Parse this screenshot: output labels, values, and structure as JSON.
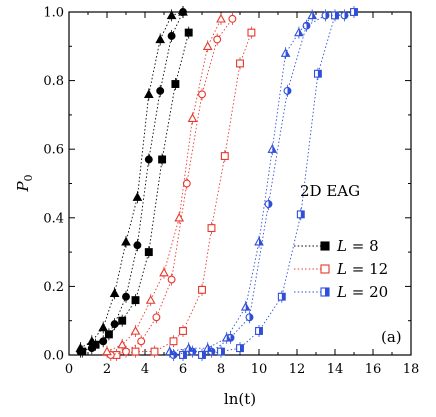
{
  "chart_data": {
    "type": "scatter",
    "xlabel": "ln(t)",
    "ylabel_main": "P",
    "ylabel_sub": "0",
    "xlim": [
      0,
      18
    ],
    "ylim": [
      0,
      1.0
    ],
    "x_ticks": [
      "0",
      "2",
      "4",
      "6",
      "8",
      "10",
      "12",
      "14",
      "16",
      "18"
    ],
    "y_ticks": [
      "0.0",
      "0.2",
      "0.4",
      "0.6",
      "0.8",
      "1.0"
    ],
    "annotation": "2D EAG",
    "panel_label": "(a)",
    "legend_position": "lower-right",
    "colors": {
      "L8": "#000000",
      "L12": "#e8372c",
      "L20": "#2f4fd8"
    },
    "series": [
      {
        "name": "L = 8",
        "legend_L": "L",
        "legend_eq": " = 8",
        "color": "#000000",
        "marker": "square-filled",
        "x": [
          0.7,
          1.4,
          2.1,
          2.8,
          3.5,
          4.2,
          4.9,
          5.6,
          6.3
        ],
        "y": [
          0.01,
          0.03,
          0.06,
          0.1,
          0.16,
          0.3,
          0.57,
          0.79,
          0.94
        ]
      },
      {
        "name": "",
        "color": "#000000",
        "marker": "circle-filled",
        "x": [
          0.6,
          1.2,
          1.8,
          2.4,
          3.0,
          3.6,
          4.2,
          4.8,
          5.4,
          6.0
        ],
        "y": [
          0.01,
          0.02,
          0.04,
          0.09,
          0.17,
          0.32,
          0.57,
          0.77,
          0.93,
          1.0
        ]
      },
      {
        "name": "",
        "color": "#000000",
        "marker": "triangle-filled",
        "x": [
          0.6,
          1.2,
          1.8,
          2.4,
          3.0,
          3.6,
          4.2,
          4.8,
          5.4,
          6.0
        ],
        "y": [
          0.02,
          0.04,
          0.08,
          0.18,
          0.33,
          0.46,
          0.76,
          0.92,
          0.99,
          1.0
        ]
      },
      {
        "name": "L = 12",
        "legend_L": "L",
        "legend_eq": " = 12",
        "color": "#e8372c",
        "marker": "square-open",
        "x": [
          2.5,
          3.5,
          4.5,
          5.5,
          6.0,
          7.0,
          7.5,
          8.2,
          9.0,
          9.6
        ],
        "y": [
          0.0,
          0.01,
          0.01,
          0.04,
          0.07,
          0.19,
          0.37,
          0.58,
          0.85,
          0.94
        ]
      },
      {
        "name": "",
        "color": "#e8372c",
        "marker": "circle-open",
        "x": [
          2.2,
          3.0,
          3.8,
          4.6,
          5.4,
          6.2,
          7.0,
          7.8,
          8.6
        ],
        "y": [
          0.0,
          0.01,
          0.04,
          0.11,
          0.22,
          0.5,
          0.76,
          0.92,
          0.98
        ]
      },
      {
        "name": "",
        "color": "#e8372c",
        "marker": "triangle-open",
        "x": [
          2.0,
          2.8,
          3.5,
          4.3,
          5.0,
          5.8,
          6.5,
          7.3,
          8.0
        ],
        "y": [
          0.01,
          0.03,
          0.07,
          0.16,
          0.24,
          0.4,
          0.69,
          0.9,
          0.98
        ]
      },
      {
        "name": "L = 20",
        "legend_L": "L",
        "legend_eq": " = 20",
        "color": "#2f4fd8",
        "marker": "square-half",
        "x": [
          6.0,
          7.0,
          8.0,
          9.0,
          10.0,
          11.2,
          12.2,
          13.1,
          14.0,
          15.0
        ],
        "y": [
          0.0,
          0.0,
          0.01,
          0.02,
          0.07,
          0.17,
          0.41,
          0.82,
          0.99,
          1.0
        ]
      },
      {
        "name": "",
        "color": "#2f4fd8",
        "marker": "circle-half",
        "x": [
          5.5,
          6.5,
          7.5,
          8.5,
          9.5,
          10.5,
          11.5,
          12.5,
          13.5,
          14.5
        ],
        "y": [
          0.0,
          0.01,
          0.01,
          0.05,
          0.11,
          0.44,
          0.77,
          0.96,
          0.99,
          0.99
        ]
      },
      {
        "name": "",
        "color": "#2f4fd8",
        "marker": "triangle-half",
        "x": [
          5.3,
          6.3,
          7.3,
          8.3,
          9.3,
          10.0,
          10.7,
          11.4,
          12.1,
          12.8
        ],
        "y": [
          0.01,
          0.02,
          0.02,
          0.05,
          0.14,
          0.33,
          0.6,
          0.88,
          0.94,
          0.99
        ]
      }
    ]
  }
}
